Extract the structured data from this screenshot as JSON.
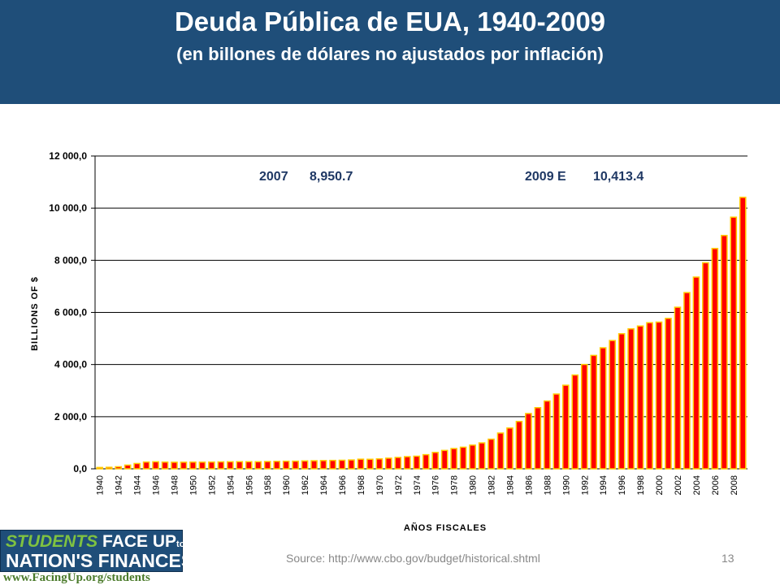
{
  "slide": {
    "title": "Deuda Pública de EUA, 1940-2009",
    "subtitle": "(en billones de dólares no ajustados por inflación)",
    "source": "Source: http://www.cbo.gov/budget/historical.shtml",
    "page_number": "13",
    "header_color": "#1f4e79"
  },
  "logo": {
    "line1_students": "STUDENTS",
    "line1_faceup": " FACE UP",
    "line1_tothe": "to the",
    "line2": "NATION'S FINANCES",
    "url": "www.FacingUp.org/students"
  },
  "chart_data": {
    "type": "bar",
    "title": "",
    "xlabel": "AÑOS FISCALES",
    "ylabel": "BILLIONS OF $",
    "ylim": [
      0,
      12000
    ],
    "yticks": [
      0,
      2000,
      4000,
      6000,
      8000,
      10000,
      12000
    ],
    "ytick_labels": [
      "0,0",
      "2 000,0",
      "4 000,0",
      "6 000,0",
      "8 000,0",
      "10 000,0",
      "12 000,0"
    ],
    "grid": true,
    "bar_fill": "#ff0000",
    "bar_edge": "#ffcc00",
    "annotations": [
      {
        "label": "2007",
        "value_text": "8,950.7"
      },
      {
        "label": "2009 E",
        "value_text": "10,413.4"
      }
    ],
    "categories": [
      "1940",
      "1941",
      "1942",
      "1943",
      "1944",
      "1945",
      "1946",
      "1947",
      "1948",
      "1949",
      "1950",
      "1951",
      "1952",
      "1953",
      "1954",
      "1955",
      "1956",
      "1957",
      "1958",
      "1959",
      "1960",
      "1961",
      "1962",
      "1963",
      "1964",
      "1965",
      "1966",
      "1967",
      "1968",
      "1969",
      "1970",
      "1971",
      "1972",
      "1973",
      "1974",
      "1975",
      "1976",
      "1977",
      "1978",
      "1979",
      "1980",
      "1981",
      "1982",
      "1983",
      "1984",
      "1985",
      "1986",
      "1987",
      "1988",
      "1989",
      "1990",
      "1991",
      "1992",
      "1993",
      "1994",
      "1995",
      "1996",
      "1997",
      "1998",
      "1999",
      "2000",
      "2001",
      "2002",
      "2003",
      "2004",
      "2005",
      "2006",
      "2007",
      "2008",
      "2009"
    ],
    "tick_labels": [
      "1940",
      "1942",
      "1944",
      "1946",
      "1948",
      "1950",
      "1952",
      "1954",
      "1956",
      "1958",
      "1960",
      "1962",
      "1964",
      "1966",
      "1968",
      "1970",
      "1972",
      "1974",
      "1976",
      "1978",
      "1980",
      "1982",
      "1984",
      "1986",
      "1988",
      "1990",
      "1992",
      "1994",
      "1996",
      "1998",
      "2000",
      "2002",
      "2004",
      "2006",
      "2008"
    ],
    "values": [
      51,
      58,
      79,
      143,
      204,
      260,
      271,
      257,
      252,
      253,
      257,
      255,
      259,
      266,
      271,
      274,
      273,
      272,
      280,
      287,
      291,
      293,
      303,
      310,
      316,
      322,
      328,
      340,
      369,
      366,
      381,
      408,
      436,
      466,
      484,
      542,
      629,
      706,
      777,
      829,
      909,
      995,
      1137,
      1372,
      1565,
      1817,
      2121,
      2346,
      2601,
      2868,
      3206,
      3598,
      4002,
      4351,
      4643,
      4921,
      5181,
      5369,
      5478,
      5605,
      5628,
      5770,
      6198,
      6760,
      7355,
      7905,
      8451,
      8951,
      9654,
      10413
    ]
  }
}
